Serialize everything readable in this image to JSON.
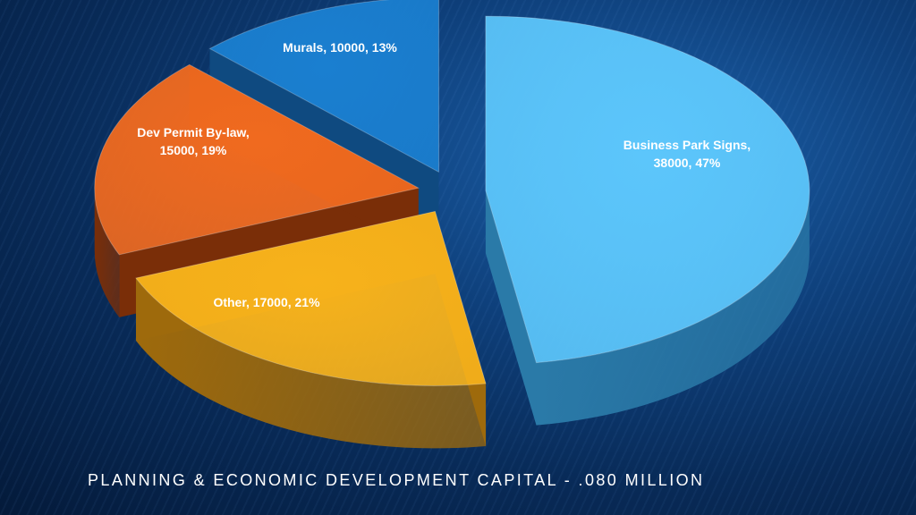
{
  "footer": {
    "title": "PLANNING & ECONOMIC DEVELOPMENT CAPITAL - .080 MILLION"
  },
  "chart_data": {
    "type": "pie",
    "title": "",
    "slices": [
      {
        "label": "Business Park Signs",
        "value": 38000,
        "percent": "47%",
        "label_text": [
          "Business Park Signs,",
          "38000, 47%"
        ],
        "color": "#5cc6fb",
        "side": "#2a7aa8"
      },
      {
        "label": "Other",
        "value": 17000,
        "percent": "21%",
        "label_text": [
          "Other, 17000, 21%"
        ],
        "color": "#f7b21b",
        "side": "#9e6a0c"
      },
      {
        "label": "Dev Permit By-law",
        "value": 15000,
        "percent": "19%",
        "label_text": [
          "Dev Permit By-law,",
          "15000, 19%"
        ],
        "color": "#f06a1f",
        "side": "#7a2e08"
      },
      {
        "label": "Murals",
        "value": 10000,
        "percent": "13%",
        "label_text": [
          "Murals, 10000, 13%"
        ],
        "color": "#1a7fd0",
        "side": "#0f4a80"
      }
    ]
  }
}
